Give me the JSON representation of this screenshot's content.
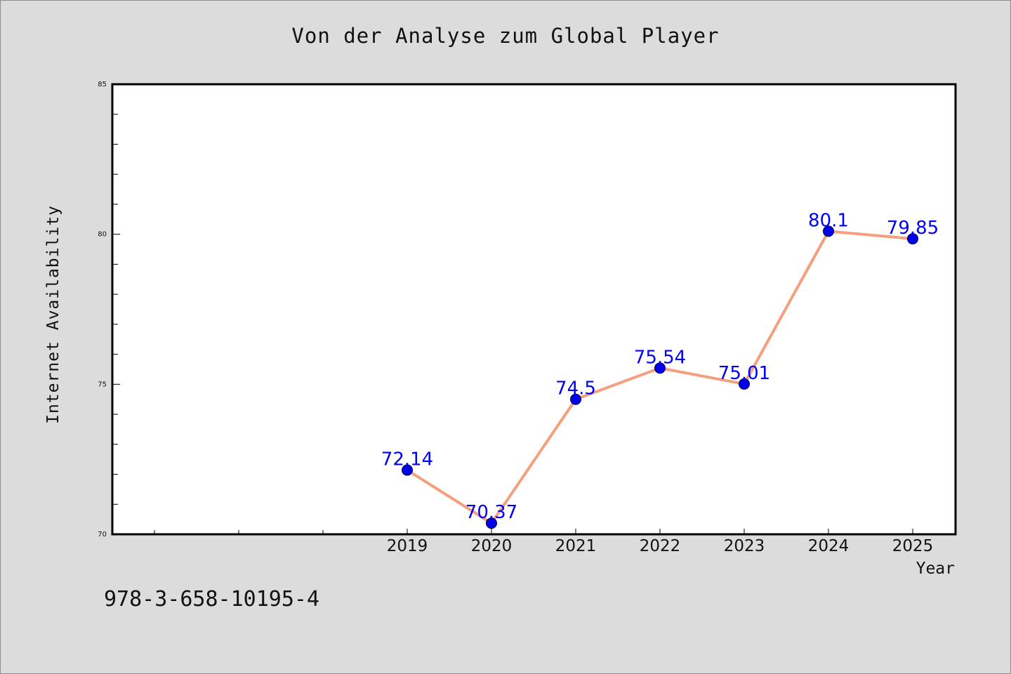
{
  "chart_data": {
    "type": "line",
    "title": "Von der Analyse zum Global Player",
    "xlabel": "Year",
    "ylabel": "Internet Availability",
    "x": [
      "2019",
      "2020",
      "2021",
      "2022",
      "2023",
      "2024",
      "2025"
    ],
    "series": [
      {
        "values": [
          72.14,
          70.37,
          74.5,
          75.54,
          75.01,
          80.1,
          79.85
        ],
        "labels": [
          "72.14",
          "70.37",
          "74.5",
          "75.54",
          "75.01",
          "80.1",
          "79.85"
        ]
      }
    ],
    "ylim": [
      70,
      85
    ],
    "y_ticks": [
      "70",
      "75",
      "80",
      "85"
    ],
    "grid": false,
    "line_color": "#f4a07e",
    "marker_color": "#0000ee",
    "label_color": "#0000ff"
  },
  "footer": {
    "code": "978-3-658-10195-4"
  }
}
